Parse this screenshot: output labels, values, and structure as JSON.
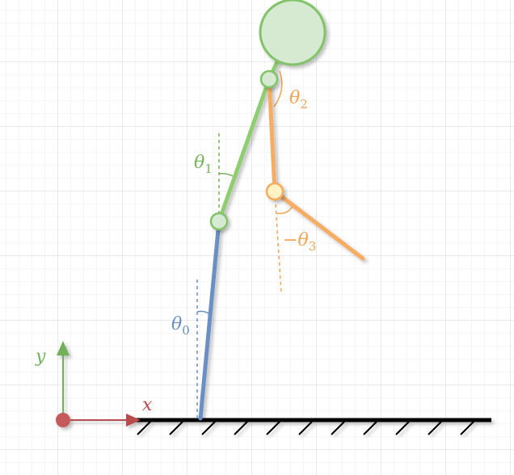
{
  "colors": {
    "grid_minor": "#ececec",
    "grid_major": "#d6d6d6",
    "ground": "#000000",
    "link0": "#6a8fc4",
    "link1": "#8fce70",
    "link2": "#f6ad63",
    "link3": "#f6ad63",
    "joint_fill_green": "#d5ead0",
    "joint_stroke_green": "#82c36a",
    "joint_fill_yellow": "#fff2c4",
    "joint_stroke_orange": "#f5ab5b",
    "axis_x": "#b84c4c",
    "axis_y": "#72b05a",
    "origin": "#c45a5a",
    "label_theta0": "#6a8fc4",
    "label_theta1": "#77b35c",
    "label_theta2": "#f3a254",
    "label_theta3": "#f3a254"
  },
  "labels": {
    "x_axis": "x",
    "y_axis": "y",
    "theta0": {
      "symbol": "θ",
      "sub": "0",
      "prefix": ""
    },
    "theta1": {
      "symbol": "θ",
      "sub": "1",
      "prefix": ""
    },
    "theta2": {
      "symbol": "θ",
      "sub": "2",
      "prefix": ""
    },
    "theta3": {
      "symbol": "θ",
      "sub": "3",
      "prefix": "−"
    }
  }
}
